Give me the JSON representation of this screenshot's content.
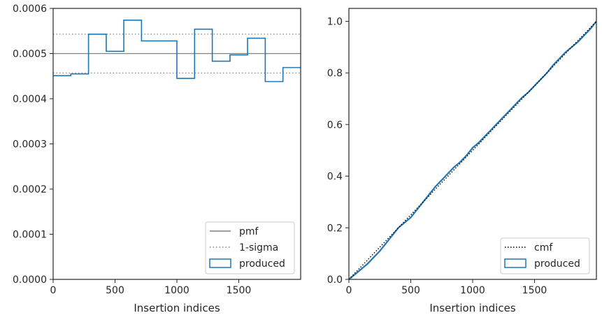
{
  "chart_data": [
    {
      "type": "line",
      "xlabel": "Insertion indices",
      "ylabel": "",
      "xlim": [
        0,
        2000
      ],
      "ylim": [
        0,
        0.0006
      ],
      "xticks": [
        0,
        500,
        1000,
        1500
      ],
      "xtick_labels": [
        "0",
        "500",
        "1000",
        "1500"
      ],
      "yticks": [
        0,
        0.0001,
        0.0002,
        0.0003,
        0.0004,
        0.0005,
        0.0006
      ],
      "ytick_labels": [
        "0.0000",
        "0.0001",
        "0.0002",
        "0.0003",
        "0.0004",
        "0.0005",
        "0.0006"
      ],
      "grid": false,
      "legend": {
        "placement": "bottom-right",
        "entries": [
          "pmf",
          "1-sigma",
          "produced"
        ]
      },
      "pmf": {
        "name": "pmf",
        "y": 0.0005,
        "color": "#808080"
      },
      "sigma": {
        "name": "1-sigma",
        "upper": 0.000543,
        "lower": 0.000457,
        "color": "#808080"
      },
      "produced": {
        "name": "produced",
        "style": "step-histogram",
        "color": "#1f77b4",
        "bin_edges": [
          0,
          143,
          286,
          429,
          571,
          714,
          857,
          1000,
          1143,
          1286,
          1429,
          1571,
          1714,
          1857,
          2000
        ],
        "values": [
          0.000451,
          0.000455,
          0.000543,
          0.000505,
          0.000574,
          0.000528,
          0.000528,
          0.000445,
          0.000554,
          0.000483,
          0.000497,
          0.000534,
          0.000438,
          0.000469
        ]
      }
    },
    {
      "type": "line",
      "xlabel": "Insertion indices",
      "ylabel": "",
      "xlim": [
        0,
        2000
      ],
      "ylim": [
        0,
        1.05
      ],
      "xticks": [
        0,
        500,
        1000,
        1500
      ],
      "xtick_labels": [
        "0",
        "500",
        "1000",
        "1500"
      ],
      "yticks": [
        0,
        0.2,
        0.4,
        0.6,
        0.8,
        1.0
      ],
      "ytick_labels": [
        "0.0",
        "0.2",
        "0.4",
        "0.6",
        "0.8",
        "1.0"
      ],
      "grid": false,
      "legend": {
        "placement": "bottom-right",
        "entries": [
          "cmf",
          "produced"
        ]
      },
      "cmf": {
        "name": "cmf",
        "x": [
          0,
          2000
        ],
        "y": [
          0,
          1
        ],
        "color": "#000000"
      },
      "produced": {
        "name": "produced",
        "color": "#1f77b4",
        "x": [
          0,
          50,
          100,
          150,
          200,
          250,
          300,
          350,
          400,
          450,
          500,
          550,
          600,
          650,
          700,
          750,
          800,
          850,
          900,
          950,
          1000,
          1050,
          1100,
          1150,
          1200,
          1250,
          1300,
          1350,
          1400,
          1450,
          1500,
          1550,
          1600,
          1650,
          1700,
          1750,
          1800,
          1850,
          1900,
          1950,
          2000
        ],
        "y": [
          0,
          0.02,
          0.04,
          0.06,
          0.085,
          0.11,
          0.14,
          0.17,
          0.2,
          0.22,
          0.24,
          0.27,
          0.3,
          0.33,
          0.36,
          0.385,
          0.41,
          0.435,
          0.455,
          0.48,
          0.51,
          0.53,
          0.555,
          0.58,
          0.605,
          0.63,
          0.655,
          0.68,
          0.705,
          0.725,
          0.75,
          0.775,
          0.8,
          0.83,
          0.855,
          0.88,
          0.9,
          0.92,
          0.945,
          0.97,
          1.0
        ]
      }
    }
  ]
}
